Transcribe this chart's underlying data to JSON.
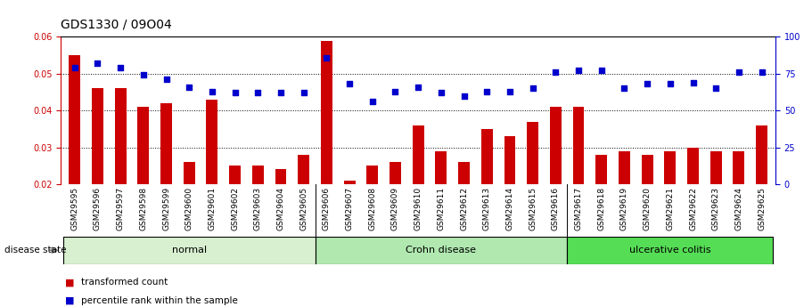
{
  "title": "GDS1330 / 09O04",
  "categories": [
    "GSM29595",
    "GSM29596",
    "GSM29597",
    "GSM29598",
    "GSM29599",
    "GSM29600",
    "GSM29601",
    "GSM29602",
    "GSM29603",
    "GSM29604",
    "GSM29605",
    "GSM29606",
    "GSM29607",
    "GSM29608",
    "GSM29609",
    "GSM29610",
    "GSM29611",
    "GSM29612",
    "GSM29613",
    "GSM29614",
    "GSM29615",
    "GSM29616",
    "GSM29617",
    "GSM29618",
    "GSM29619",
    "GSM29620",
    "GSM29621",
    "GSM29622",
    "GSM29623",
    "GSM29624",
    "GSM29625"
  ],
  "bar_values": [
    0.055,
    0.046,
    0.046,
    0.041,
    0.042,
    0.026,
    0.043,
    0.025,
    0.025,
    0.024,
    0.028,
    0.059,
    0.021,
    0.025,
    0.026,
    0.036,
    0.029,
    0.026,
    0.035,
    0.033,
    0.037,
    0.041,
    0.041,
    0.028,
    0.029,
    0.028,
    0.029,
    0.03,
    0.029,
    0.029,
    0.036
  ],
  "scatter_values": [
    79,
    82,
    79,
    74,
    71,
    66,
    63,
    62,
    62,
    62,
    62,
    86,
    68,
    56,
    63,
    66,
    62,
    60,
    63,
    63,
    65,
    76,
    77,
    77,
    65,
    68,
    68,
    69,
    65,
    76,
    76
  ],
  "groups": [
    {
      "label": "normal",
      "start": 0,
      "end": 11,
      "color": "#d8f0d0"
    },
    {
      "label": "Crohn disease",
      "start": 11,
      "end": 22,
      "color": "#b0e8b0"
    },
    {
      "label": "ulcerative colitis",
      "start": 22,
      "end": 31,
      "color": "#55dd55"
    }
  ],
  "bar_color": "#cc0000",
  "scatter_color": "#0000cc",
  "ylim_left": [
    0.02,
    0.06
  ],
  "ylim_right": [
    0,
    100
  ],
  "yticks_left": [
    0.02,
    0.03,
    0.04,
    0.05,
    0.06
  ],
  "yticks_right": [
    0,
    25,
    50,
    75,
    100
  ],
  "background_color": "#ffffff",
  "legend_bar_label": "transformed count",
  "legend_scatter_label": "percentile rank within the sample",
  "disease_state_label": "disease state",
  "xticklabel_bg": "#c8c8c8",
  "title_fontsize": 10,
  "tick_fontsize": 7,
  "xtick_fontsize": 6.5,
  "group_label_fontsize": 8
}
